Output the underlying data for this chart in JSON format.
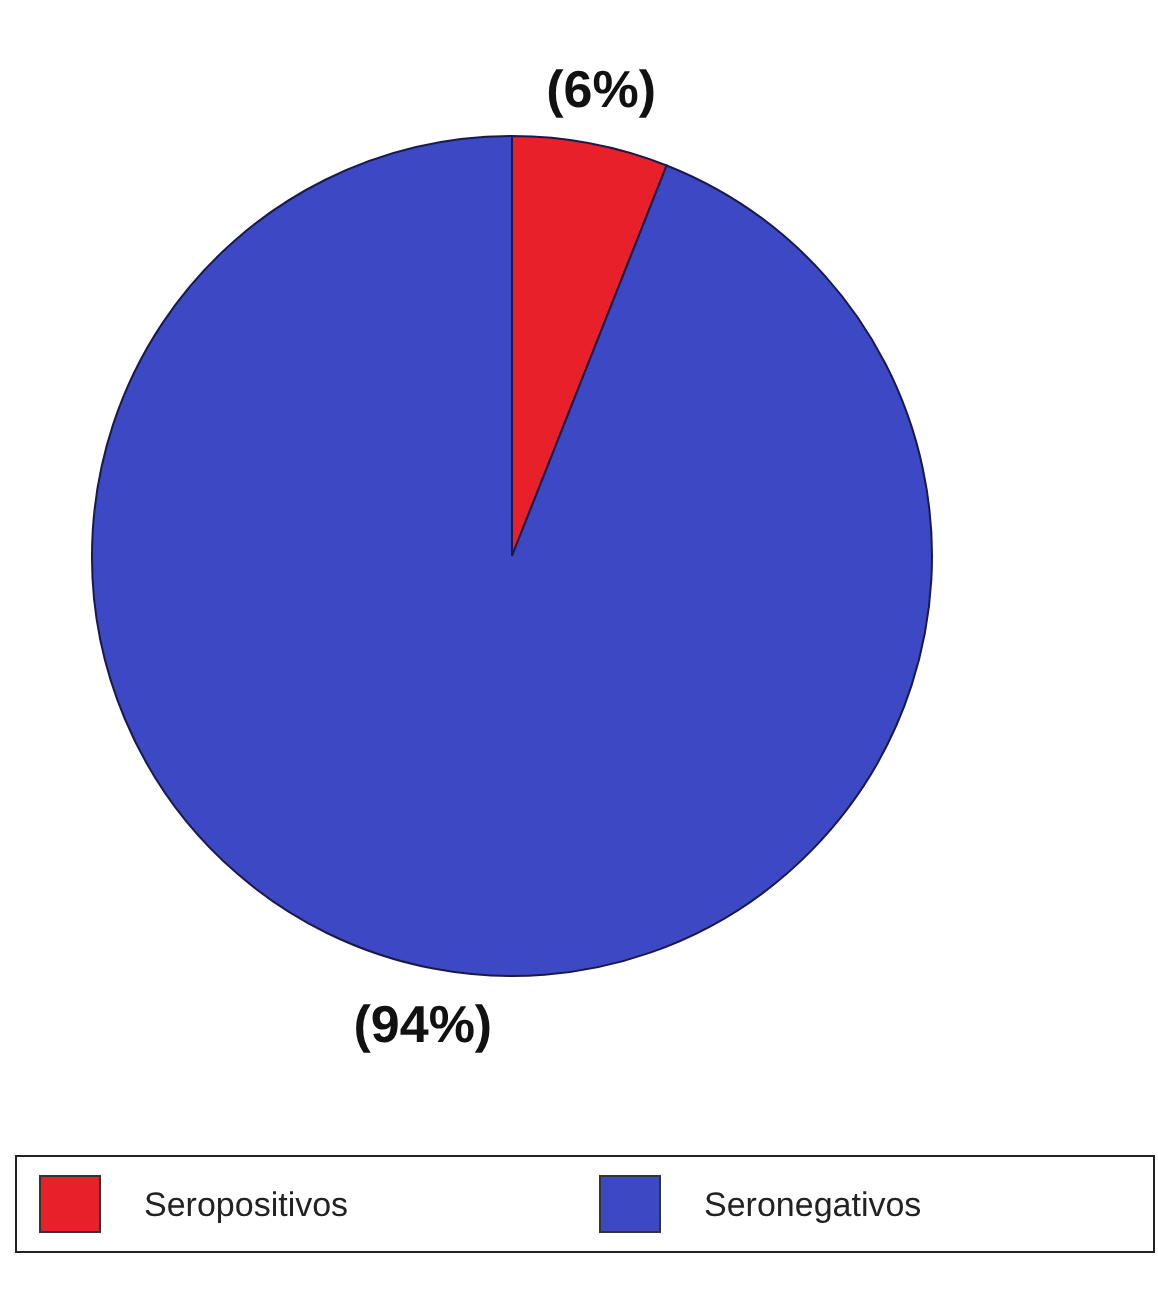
{
  "chart_data": {
    "type": "pie",
    "categories": [
      "Seropositivos",
      "Seronegativos"
    ],
    "values": [
      6,
      94
    ],
    "colors": [
      "#e8202a",
      "#3d49c4"
    ],
    "value_labels": [
      "(6%)",
      "(94%)"
    ],
    "legend": "bottom"
  }
}
